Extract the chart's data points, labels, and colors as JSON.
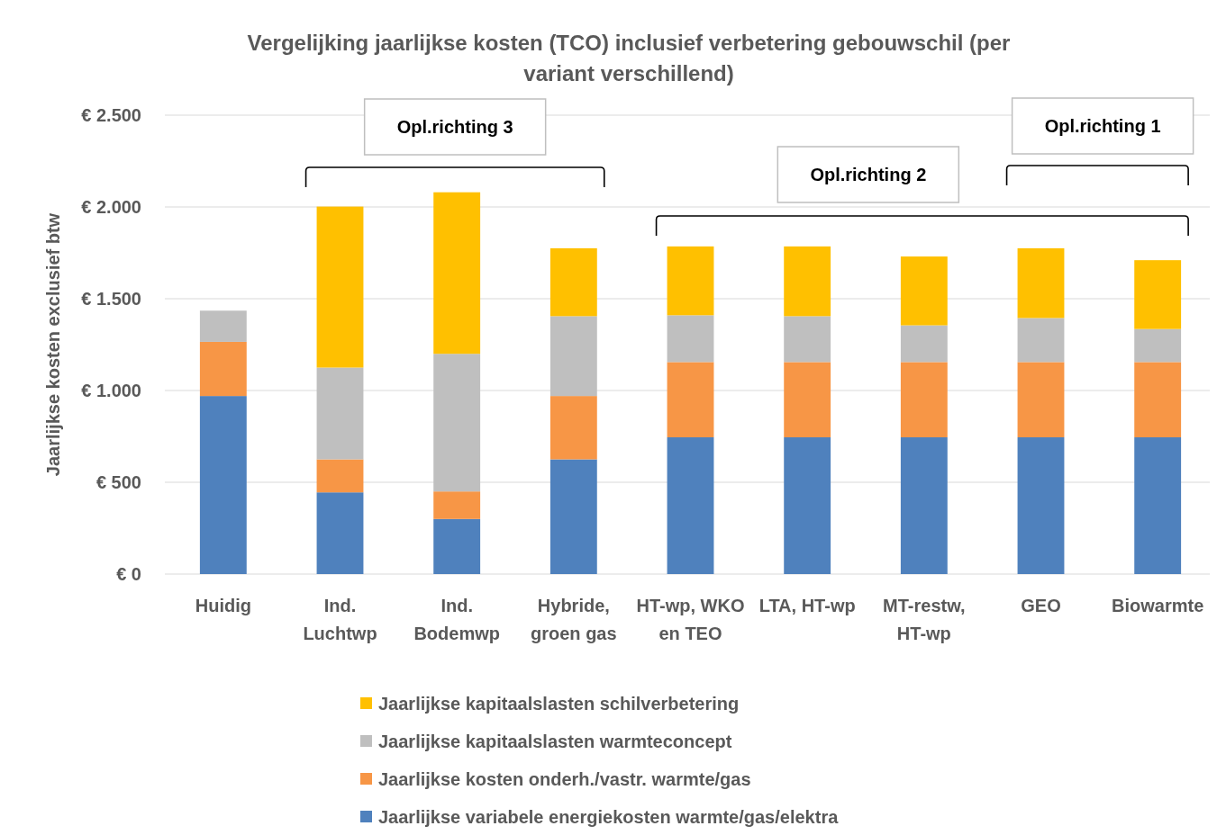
{
  "chart_data": {
    "type": "bar",
    "stacked": true,
    "title": "Vergelijking jaarlijkse kosten (TCO) inclusief verbetering gebouwschil (per variant verschillend)",
    "ylabel": "Jaarlijkse kosten exclusief btw",
    "categories": [
      "Huidig",
      "Ind. Luchtwp",
      "Ind. Bodemwp",
      "Hybride, groen gas",
      "HT-wp, WKO en TEO",
      "LTA, HT-wp",
      "MT-restw, HT-wp",
      "GEO",
      "Biowarmte"
    ],
    "series": [
      {
        "name": "Jaarlijkse variabele energiekosten warmte/gas/elektra",
        "color": "#4f81bd",
        "values": [
          970,
          445,
          300,
          625,
          745,
          745,
          745,
          745,
          745
        ]
      },
      {
        "name": "Jaarlijkse kosten onderh./vastr. warmte/gas",
        "color": "#f79646",
        "values": [
          295,
          180,
          150,
          345,
          410,
          410,
          410,
          410,
          410
        ]
      },
      {
        "name": "Jaarlijkse kapitaalslasten warmteconcept",
        "color": "#bfbfbf",
        "values": [
          170,
          500,
          750,
          435,
          255,
          250,
          200,
          240,
          180
        ]
      },
      {
        "name": "Jaarlijkse kapitaalslasten schilverbetering",
        "color": "#ffc000",
        "values": [
          0,
          877,
          880,
          370,
          375,
          380,
          375,
          380,
          375
        ]
      }
    ],
    "ylim": [
      0,
      2500
    ],
    "yticks": [
      {
        "value": 0,
        "label": "€ 0"
      },
      {
        "value": 500,
        "label": "€ 500"
      },
      {
        "value": 1000,
        "label": "€ 1.000"
      },
      {
        "value": 1500,
        "label": "€ 1.500"
      },
      {
        "value": 2000,
        "label": "€ 2.000"
      },
      {
        "value": 2500,
        "label": "€ 2.500"
      }
    ],
    "grid": "y",
    "legend": "bottom",
    "annotations": [
      "Opl.richting 3",
      "Opl.richting 2",
      "Opl.richting 1"
    ]
  }
}
